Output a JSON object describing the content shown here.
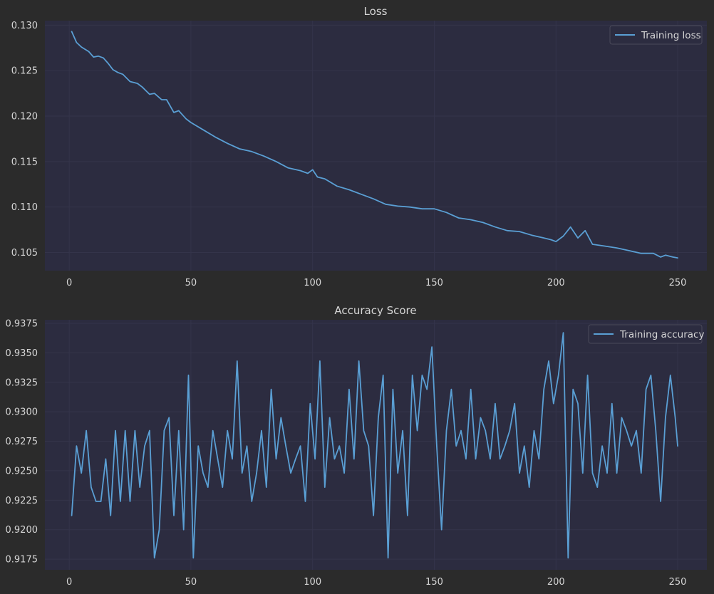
{
  "chart_data": [
    {
      "type": "line",
      "title": "Loss",
      "xlabel": "",
      "ylabel": "",
      "xlim": [
        -10,
        262
      ],
      "ylim": [
        0.103,
        0.1305
      ],
      "xticks": [
        0,
        50,
        100,
        150,
        200,
        250
      ],
      "yticks": [
        0.105,
        0.11,
        0.115,
        0.12,
        0.125,
        0.13
      ],
      "ytick_labels": [
        "0.105",
        "0.110",
        "0.115",
        "0.120",
        "0.125",
        "0.130"
      ],
      "grid": true,
      "legend": "top-right",
      "series": [
        {
          "name": "Training loss",
          "color": "#5a9fd4",
          "x": [
            1,
            3,
            5,
            8,
            10,
            12,
            14,
            16,
            18,
            20,
            22,
            25,
            28,
            30,
            33,
            35,
            38,
            40,
            43,
            45,
            48,
            50,
            55,
            60,
            65,
            70,
            75,
            80,
            85,
            90,
            95,
            98,
            100,
            102,
            105,
            110,
            115,
            120,
            125,
            130,
            135,
            140,
            145,
            150,
            155,
            160,
            165,
            170,
            175,
            180,
            185,
            190,
            195,
            198,
            200,
            203,
            206,
            209,
            212,
            215,
            220,
            225,
            230,
            235,
            240,
            243,
            245,
            248,
            250
          ],
          "y": [
            0.1293,
            0.1281,
            0.1276,
            0.1271,
            0.1265,
            0.1266,
            0.1264,
            0.1258,
            0.1251,
            0.1248,
            0.1246,
            0.1238,
            0.1236,
            0.1232,
            0.1224,
            0.1225,
            0.1218,
            0.1218,
            0.1204,
            0.1206,
            0.1197,
            0.1193,
            0.1185,
            0.1177,
            0.117,
            0.1164,
            0.1161,
            0.1156,
            0.115,
            0.1143,
            0.114,
            0.1137,
            0.1141,
            0.1133,
            0.1131,
            0.1123,
            0.1119,
            0.1114,
            0.1109,
            0.1103,
            0.1101,
            0.11,
            0.1098,
            0.1098,
            0.1094,
            0.1088,
            0.1086,
            0.1083,
            0.1078,
            0.1074,
            0.1073,
            0.1069,
            0.1066,
            0.1064,
            0.1062,
            0.1068,
            0.1078,
            0.1066,
            0.1074,
            0.1059,
            0.1057,
            0.1055,
            0.1052,
            0.1049,
            0.1049,
            0.1045,
            0.1047,
            0.1045,
            0.1044
          ]
        }
      ]
    },
    {
      "type": "line",
      "title": "Accuracy Score",
      "xlabel": "",
      "ylabel": "",
      "xlim": [
        -10,
        262
      ],
      "ylim": [
        0.9166,
        0.9378
      ],
      "xticks": [
        0,
        50,
        100,
        150,
        200,
        250
      ],
      "yticks": [
        0.9175,
        0.92,
        0.9225,
        0.925,
        0.9275,
        0.93,
        0.9325,
        0.935,
        0.9375
      ],
      "ytick_labels": [
        "0.9175",
        "0.9200",
        "0.9225",
        "0.9250",
        "0.9275",
        "0.9300",
        "0.9325",
        "0.9350",
        "0.9375"
      ],
      "grid": true,
      "legend": "top-right",
      "series": [
        {
          "name": "Training accuracy",
          "color": "#5a9fd4",
          "x": [
            1,
            3,
            5,
            7,
            9,
            11,
            13,
            15,
            17,
            19,
            21,
            23,
            25,
            27,
            29,
            31,
            33,
            35,
            37,
            39,
            41,
            43,
            45,
            47,
            49,
            51,
            53,
            55,
            57,
            59,
            61,
            63,
            65,
            67,
            69,
            71,
            73,
            75,
            77,
            79,
            81,
            83,
            85,
            87,
            89,
            91,
            93,
            95,
            97,
            99,
            101,
            103,
            105,
            107,
            109,
            111,
            113,
            115,
            117,
            119,
            121,
            123,
            125,
            127,
            129,
            131,
            133,
            135,
            137,
            139,
            141,
            143,
            145,
            147,
            149,
            151,
            153,
            155,
            157,
            159,
            161,
            163,
            165,
            167,
            169,
            171,
            173,
            175,
            177,
            179,
            181,
            183,
            185,
            187,
            189,
            191,
            193,
            195,
            197,
            199,
            201,
            203,
            205,
            207,
            209,
            211,
            213,
            215,
            217,
            219,
            221,
            223,
            225,
            227,
            229,
            231,
            233,
            235,
            237,
            239,
            241,
            243,
            245,
            247,
            249,
            250
          ],
          "y": [
            0.9212,
            0.9271,
            0.9248,
            0.9284,
            0.9236,
            0.9224,
            0.9224,
            0.926,
            0.9212,
            0.9284,
            0.9224,
            0.9284,
            0.9224,
            0.9284,
            0.9236,
            0.9271,
            0.9284,
            0.9176,
            0.92,
            0.9284,
            0.9295,
            0.9212,
            0.9284,
            0.92,
            0.9331,
            0.9176,
            0.9271,
            0.9248,
            0.9236,
            0.9284,
            0.926,
            0.9236,
            0.9284,
            0.926,
            0.9343,
            0.9248,
            0.9271,
            0.9224,
            0.9248,
            0.9284,
            0.9236,
            0.9319,
            0.926,
            0.9295,
            0.9271,
            0.9248,
            0.926,
            0.9271,
            0.9224,
            0.9307,
            0.926,
            0.9343,
            0.9236,
            0.9295,
            0.926,
            0.9271,
            0.9248,
            0.9319,
            0.926,
            0.9343,
            0.9284,
            0.9271,
            0.9212,
            0.9295,
            0.9331,
            0.9176,
            0.9319,
            0.9248,
            0.9284,
            0.9212,
            0.9331,
            0.9284,
            0.9331,
            0.9319,
            0.9355,
            0.9271,
            0.92,
            0.9284,
            0.9319,
            0.9271,
            0.9284,
            0.926,
            0.9319,
            0.926,
            0.9295,
            0.9284,
            0.926,
            0.9307,
            0.926,
            0.9271,
            0.9284,
            0.9307,
            0.9248,
            0.9271,
            0.9236,
            0.9284,
            0.926,
            0.9319,
            0.9343,
            0.9307,
            0.9331,
            0.9367,
            0.9176,
            0.9319,
            0.9307,
            0.9248,
            0.9331,
            0.9248,
            0.9236,
            0.9271,
            0.9248,
            0.9307,
            0.9248,
            0.9295,
            0.9284,
            0.9271,
            0.9284,
            0.9248,
            0.9319,
            0.9331,
            0.9284,
            0.9224,
            0.9295,
            0.9331,
            0.9295,
            0.9271
          ],
          "note": ""
        }
      ]
    }
  ]
}
